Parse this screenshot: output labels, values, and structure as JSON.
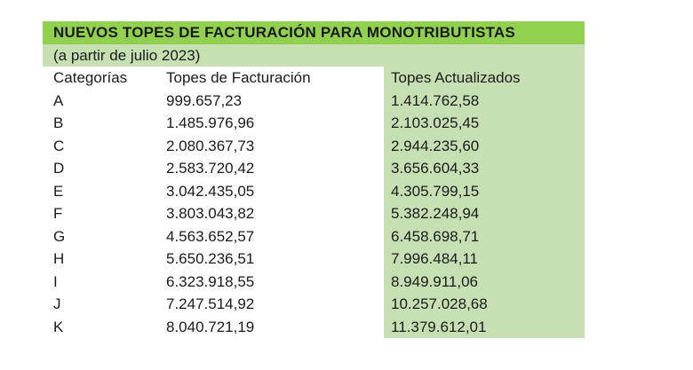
{
  "header": {
    "title": "NUEVOS TOPES DE FACTURACIÓN PARA MONOTRIBUTISTAS",
    "subtitle": "(a partir de julio 2023)"
  },
  "table": {
    "columns": [
      "Categorías",
      "Topes de Facturación",
      "Topes Actualizados"
    ],
    "rows": [
      [
        "A",
        "999.657,23",
        "1.414.762,58"
      ],
      [
        "B",
        "1.485.976,96",
        "2.103.025,45"
      ],
      [
        "C",
        "2.080.367,73",
        "2.944.235,60"
      ],
      [
        "D",
        "2.583.720,42",
        "3.656.604,33"
      ],
      [
        "E",
        "3.042.435,05",
        "4.305.799,15"
      ],
      [
        "F",
        "3.803.043,82",
        "5.382.248,94"
      ],
      [
        "G",
        "4.563.652,57",
        "6.458.698,71"
      ],
      [
        "H",
        "5.650.236,51",
        "7.996.484,11"
      ],
      [
        "I",
        "6.323.918,55",
        "8.949.911,06"
      ],
      [
        "J",
        "7.247.514,92",
        "10.257.028,68"
      ],
      [
        "K",
        "8.040.721,19",
        "11.379.612,01"
      ]
    ]
  }
}
